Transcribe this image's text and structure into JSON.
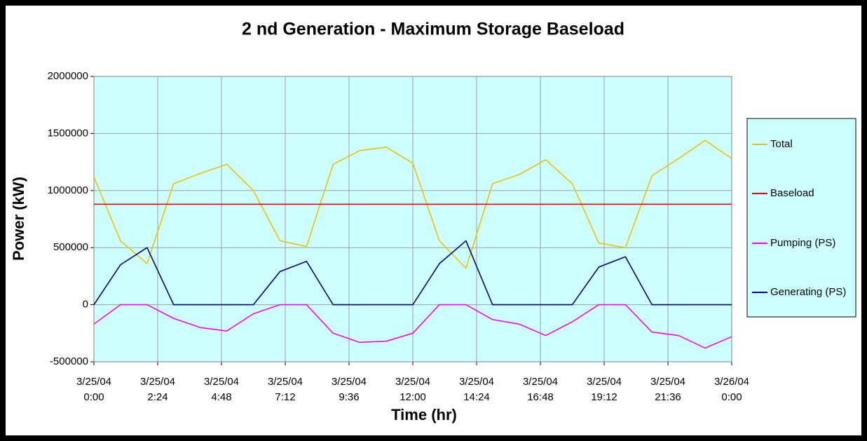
{
  "chart_data": {
    "type": "line",
    "title": "2 nd Generation - Maximum Storage Baseload",
    "x_label": "Time (hr)",
    "y_label": "Power (kW)",
    "x": [
      0,
      1,
      2,
      3,
      4,
      5,
      6,
      7,
      8,
      9,
      10,
      11,
      12,
      13,
      14,
      15,
      16,
      17,
      18,
      19,
      20,
      21,
      22,
      23,
      24
    ],
    "xlim": [
      0,
      24
    ],
    "xticks": [
      {
        "value": 0,
        "label": "3/25/04 0:00"
      },
      {
        "value": 2.4,
        "label": "3/25/04 2:24"
      },
      {
        "value": 4.8,
        "label": "3/25/04 4:48"
      },
      {
        "value": 7.2,
        "label": "3/25/04 7:12"
      },
      {
        "value": 9.6,
        "label": "3/25/04 9:36"
      },
      {
        "value": 12,
        "label": "3/25/04 12:00"
      },
      {
        "value": 14.4,
        "label": "3/25/04 14:24"
      },
      {
        "value": 16.8,
        "label": "3/25/04 16:48"
      },
      {
        "value": 19.2,
        "label": "3/25/04 19:12"
      },
      {
        "value": 21.6,
        "label": "3/25/04 21:36"
      },
      {
        "value": 24,
        "label": "3/26/04 0:00"
      }
    ],
    "ylim": [
      -500000,
      2000000
    ],
    "yticks": [
      -500000,
      0,
      500000,
      1000000,
      1500000,
      2000000
    ],
    "grid": true,
    "legend": "right",
    "series": [
      {
        "name": "Total",
        "color": "#f0c000",
        "values": [
          1120000,
          560000,
          360000,
          1060000,
          1150000,
          1230000,
          1000000,
          560000,
          510000,
          1230000,
          1350000,
          1380000,
          1240000,
          560000,
          320000,
          1060000,
          1140000,
          1270000,
          1060000,
          540000,
          500000,
          1130000,
          1280000,
          1440000,
          1280000
        ]
      },
      {
        "name": "Baseload",
        "color": "#ff0000",
        "values": [
          880000,
          880000,
          880000,
          880000,
          880000,
          880000,
          880000,
          880000,
          880000,
          880000,
          880000,
          880000,
          880000,
          880000,
          880000,
          880000,
          880000,
          880000,
          880000,
          880000,
          880000,
          880000,
          880000,
          880000,
          880000
        ]
      },
      {
        "name": "Pumping (PS)",
        "color": "#ff00ff",
        "values": [
          -170000,
          0,
          0,
          -120000,
          -200000,
          -230000,
          -80000,
          0,
          0,
          -250000,
          -330000,
          -320000,
          -250000,
          0,
          0,
          -130000,
          -170000,
          -270000,
          -150000,
          0,
          0,
          -240000,
          -270000,
          -380000,
          -280000
        ]
      },
      {
        "name": "Generating (PS)",
        "color": "#000080",
        "values": [
          0,
          350000,
          500000,
          0,
          0,
          0,
          0,
          290000,
          380000,
          0,
          0,
          0,
          0,
          360000,
          560000,
          0,
          0,
          0,
          0,
          330000,
          420000,
          0,
          0,
          0,
          0
        ]
      }
    ]
  }
}
